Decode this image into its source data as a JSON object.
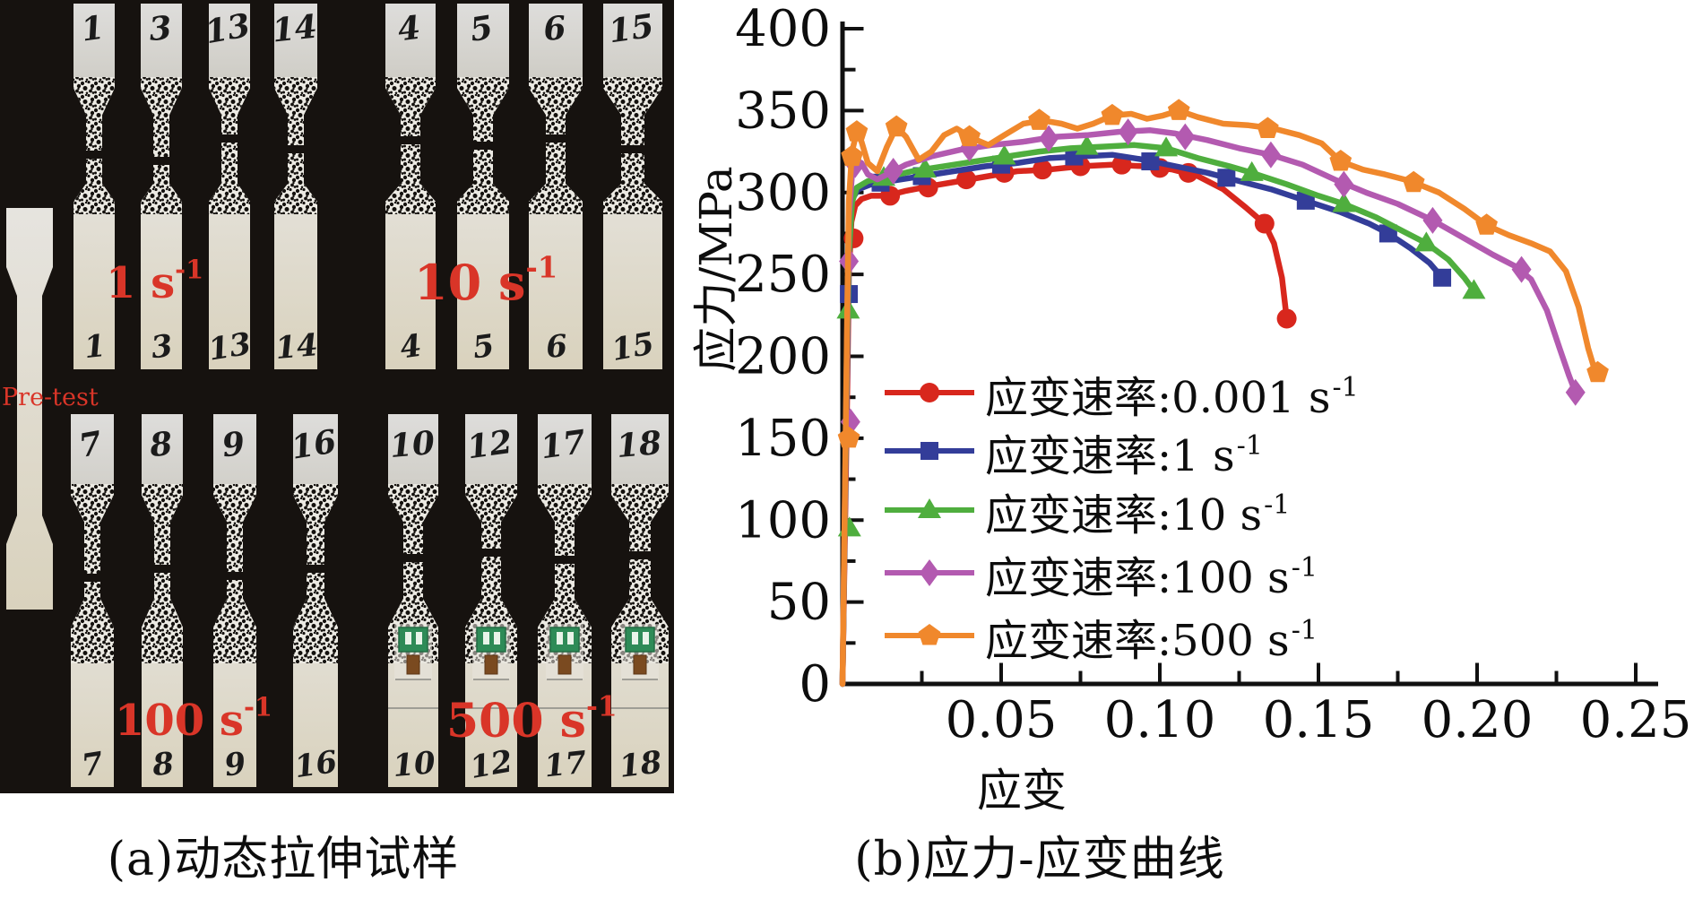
{
  "figure": {
    "panel_a": {
      "caption": "(a)动态拉伸试样",
      "photo": {
        "bg_color": "#16120f",
        "label_color": "#d93528",
        "pretest_label": "Pre-test",
        "groups": [
          {
            "id": "1s",
            "label_base": "1 s",
            "label_sup": "-1",
            "row": "top",
            "specimens": [
              "1",
              "3",
              "13",
              "14"
            ]
          },
          {
            "id": "10s",
            "label_base": "10 s",
            "label_sup": "-1",
            "row": "top",
            "specimens": [
              "4",
              "5",
              "6",
              "15"
            ]
          },
          {
            "id": "100s",
            "label_base": "100 s",
            "label_sup": "-1",
            "row": "bottom",
            "specimens": [
              "7",
              "8",
              "9",
              "16"
            ]
          },
          {
            "id": "500s",
            "label_base": "500 s",
            "label_sup": "-1",
            "row": "bottom",
            "specimens": [
              "10",
              "12",
              "17",
              "18"
            ]
          }
        ]
      }
    },
    "panel_b": {
      "caption": "(b)应力-应变曲线",
      "x_title": "应变",
      "y_title": "应力/MPa"
    }
  },
  "chart_data": {
    "type": "line",
    "title": "",
    "xlabel": "应变",
    "ylabel": "应力/MPa",
    "xlim": [
      0,
      0.25
    ],
    "ylim": [
      0,
      400
    ],
    "grid": false,
    "legend_position": "inside-left-middle",
    "axis_color": "#111111",
    "x_ticks": [
      0.05,
      0.1,
      0.15,
      0.2,
      0.25
    ],
    "x_tick_labels": [
      "0.05",
      "0.10",
      "0.15",
      "0.20",
      "0.25"
    ],
    "x_minor_step": 0.025,
    "y_ticks": [
      0,
      50,
      100,
      150,
      200,
      250,
      300,
      350,
      400
    ],
    "y_tick_labels": [
      "0",
      "50",
      "100",
      "150",
      "200",
      "250",
      "300",
      "350",
      "400"
    ],
    "y_minor_step": 25,
    "series": [
      {
        "name": "应变速率:0.001 s⁻¹",
        "label_base": "应变速率:0.001 s",
        "label_sup": "-1",
        "rate": "0.001",
        "color": "#d8271d",
        "marker": "circle",
        "points": [
          [
            0,
            0
          ],
          [
            0.0015,
            180
          ],
          [
            0.002,
            250
          ],
          [
            0.0028,
            282
          ],
          [
            0.004,
            292
          ],
          [
            0.006,
            296
          ],
          [
            0.009,
            298
          ],
          [
            0.014,
            298
          ],
          [
            0.02,
            301
          ],
          [
            0.028,
            304
          ],
          [
            0.037,
            307
          ],
          [
            0.046,
            310
          ],
          [
            0.055,
            313
          ],
          [
            0.065,
            314
          ],
          [
            0.075,
            316
          ],
          [
            0.085,
            317
          ],
          [
            0.095,
            316
          ],
          [
            0.104,
            314
          ],
          [
            0.112,
            310
          ],
          [
            0.12,
            302
          ],
          [
            0.127,
            291
          ],
          [
            0.133,
            281
          ],
          [
            0.136,
            269
          ],
          [
            0.1385,
            248
          ],
          [
            0.14,
            223
          ]
        ],
        "markers": [
          [
            0.0035,
            272
          ],
          [
            0.015,
            298
          ],
          [
            0.027,
            303
          ],
          [
            0.039,
            308
          ],
          [
            0.051,
            312
          ],
          [
            0.063,
            314
          ],
          [
            0.075,
            316
          ],
          [
            0.088,
            317
          ],
          [
            0.1,
            315
          ],
          [
            0.109,
            312
          ],
          [
            0.133,
            281
          ],
          [
            0.14,
            223
          ]
        ]
      },
      {
        "name": "应变速率:1 s⁻¹",
        "label_base": "应变速率:1 s",
        "label_sup": "-1",
        "rate": "1",
        "color": "#333d99",
        "marker": "square",
        "points": [
          [
            0,
            0
          ],
          [
            0.0015,
            200
          ],
          [
            0.002,
            262
          ],
          [
            0.003,
            296
          ],
          [
            0.005,
            302
          ],
          [
            0.009,
            305
          ],
          [
            0.015,
            307
          ],
          [
            0.025,
            310
          ],
          [
            0.035,
            313
          ],
          [
            0.045,
            316
          ],
          [
            0.055,
            318
          ],
          [
            0.065,
            321
          ],
          [
            0.075,
            322
          ],
          [
            0.085,
            323
          ],
          [
            0.095,
            320
          ],
          [
            0.105,
            316
          ],
          [
            0.115,
            312
          ],
          [
            0.125,
            307
          ],
          [
            0.135,
            302
          ],
          [
            0.146,
            295
          ],
          [
            0.157,
            288
          ],
          [
            0.166,
            281
          ],
          [
            0.172,
            275
          ],
          [
            0.179,
            266
          ],
          [
            0.185,
            257
          ],
          [
            0.189,
            248
          ]
        ],
        "markers": [
          [
            0.002,
            238
          ],
          [
            0.012,
            306
          ],
          [
            0.025,
            310
          ],
          [
            0.05,
            317
          ],
          [
            0.073,
            322
          ],
          [
            0.097,
            319
          ],
          [
            0.121,
            309
          ],
          [
            0.146,
            295
          ],
          [
            0.172,
            275
          ],
          [
            0.189,
            248
          ]
        ]
      },
      {
        "name": "应变速率:10 s⁻¹",
        "label_base": "应变速率:10 s",
        "label_sup": "-1",
        "rate": "10",
        "color": "#4fae3e",
        "marker": "triangle",
        "points": [
          [
            0,
            0
          ],
          [
            0.0015,
            210
          ],
          [
            0.002,
            262
          ],
          [
            0.003,
            294
          ],
          [
            0.0045,
            303
          ],
          [
            0.008,
            307
          ],
          [
            0.013,
            309
          ],
          [
            0.022,
            313
          ],
          [
            0.032,
            316
          ],
          [
            0.042,
            319
          ],
          [
            0.052,
            322
          ],
          [
            0.062,
            325
          ],
          [
            0.072,
            327
          ],
          [
            0.082,
            328
          ],
          [
            0.092,
            329
          ],
          [
            0.102,
            327
          ],
          [
            0.112,
            321
          ],
          [
            0.122,
            316
          ],
          [
            0.129,
            312
          ],
          [
            0.14,
            305
          ],
          [
            0.15,
            298
          ],
          [
            0.158,
            293
          ],
          [
            0.168,
            285
          ],
          [
            0.177,
            276
          ],
          [
            0.184,
            269
          ],
          [
            0.191,
            259
          ],
          [
            0.196,
            248
          ],
          [
            0.199,
            240
          ]
        ],
        "markers": [
          [
            0.0018,
            228
          ],
          [
            0.0022,
            95
          ],
          [
            0.013,
            309
          ],
          [
            0.026,
            314
          ],
          [
            0.051,
            322
          ],
          [
            0.077,
            328
          ],
          [
            0.102,
            327
          ],
          [
            0.129,
            312
          ],
          [
            0.158,
            293
          ],
          [
            0.184,
            269
          ],
          [
            0.199,
            240
          ]
        ]
      },
      {
        "name": "应变速率:100 s⁻¹",
        "label_base": "应变速率:100 s",
        "label_sup": "-1",
        "rate": "100",
        "color": "#b35ab0",
        "marker": "diamond",
        "points": [
          [
            0,
            0
          ],
          [
            0.0015,
            220
          ],
          [
            0.002,
            285
          ],
          [
            0.003,
            311
          ],
          [
            0.004,
            317
          ],
          [
            0.006,
            318
          ],
          [
            0.008,
            311
          ],
          [
            0.011,
            308
          ],
          [
            0.015,
            312
          ],
          [
            0.02,
            317
          ],
          [
            0.028,
            322
          ],
          [
            0.037,
            326
          ],
          [
            0.047,
            329
          ],
          [
            0.057,
            331
          ],
          [
            0.067,
            334
          ],
          [
            0.077,
            335
          ],
          [
            0.087,
            337
          ],
          [
            0.097,
            338
          ],
          [
            0.105,
            336
          ],
          [
            0.115,
            332
          ],
          [
            0.125,
            327
          ],
          [
            0.135,
            323
          ],
          [
            0.145,
            317
          ],
          [
            0.155,
            308
          ],
          [
            0.165,
            300
          ],
          [
            0.175,
            293
          ],
          [
            0.186,
            283
          ],
          [
            0.196,
            272
          ],
          [
            0.205,
            262
          ],
          [
            0.212,
            255
          ],
          [
            0.217,
            247
          ],
          [
            0.222,
            228
          ],
          [
            0.226,
            205
          ],
          [
            0.229,
            188
          ],
          [
            0.231,
            178
          ]
        ],
        "markers": [
          [
            0.002,
            258
          ],
          [
            0.0025,
            160
          ],
          [
            0.004,
            317
          ],
          [
            0.016,
            313
          ],
          [
            0.04,
            327
          ],
          [
            0.065,
            333
          ],
          [
            0.09,
            337
          ],
          [
            0.108,
            334
          ],
          [
            0.135,
            323
          ],
          [
            0.158,
            305
          ],
          [
            0.186,
            283
          ],
          [
            0.214,
            253
          ],
          [
            0.231,
            178
          ]
        ]
      },
      {
        "name": "应变速率:500 s⁻¹",
        "label_base": "应变速率:500 s",
        "label_sup": "-1",
        "rate": "500",
        "color": "#f0882c",
        "marker": "pentagon",
        "points": [
          [
            0,
            0
          ],
          [
            0.0015,
            230
          ],
          [
            0.002,
            295
          ],
          [
            0.003,
            325
          ],
          [
            0.0045,
            337
          ],
          [
            0.006,
            331
          ],
          [
            0.008,
            318
          ],
          [
            0.011,
            313
          ],
          [
            0.014,
            328
          ],
          [
            0.017,
            340
          ],
          [
            0.02,
            334
          ],
          [
            0.024,
            320
          ],
          [
            0.028,
            325
          ],
          [
            0.032,
            335
          ],
          [
            0.036,
            339
          ],
          [
            0.041,
            333
          ],
          [
            0.046,
            329
          ],
          [
            0.051,
            335
          ],
          [
            0.057,
            342
          ],
          [
            0.063,
            344
          ],
          [
            0.069,
            342
          ],
          [
            0.074,
            339
          ],
          [
            0.079,
            342
          ],
          [
            0.085,
            347
          ],
          [
            0.091,
            348
          ],
          [
            0.096,
            345
          ],
          [
            0.101,
            347
          ],
          [
            0.106,
            350
          ],
          [
            0.112,
            346
          ],
          [
            0.12,
            342
          ],
          [
            0.128,
            341
          ],
          [
            0.136,
            339
          ],
          [
            0.144,
            335
          ],
          [
            0.151,
            330
          ],
          [
            0.157,
            319
          ],
          [
            0.164,
            314
          ],
          [
            0.171,
            311
          ],
          [
            0.179,
            307
          ],
          [
            0.188,
            300
          ],
          [
            0.196,
            290
          ],
          [
            0.203,
            280
          ],
          [
            0.21,
            274
          ],
          [
            0.217,
            269
          ],
          [
            0.223,
            264
          ],
          [
            0.228,
            252
          ],
          [
            0.232,
            230
          ],
          [
            0.235,
            205
          ],
          [
            0.237,
            192
          ],
          [
            0.238,
            190
          ]
        ],
        "markers": [
          [
            0.002,
            150
          ],
          [
            0.003,
            322
          ],
          [
            0.0045,
            337
          ],
          [
            0.017,
            340
          ],
          [
            0.04,
            334
          ],
          [
            0.062,
            344
          ],
          [
            0.085,
            347
          ],
          [
            0.106,
            350
          ],
          [
            0.134,
            339
          ],
          [
            0.157,
            319
          ],
          [
            0.18,
            306
          ],
          [
            0.203,
            280
          ],
          [
            0.238,
            190
          ]
        ]
      }
    ]
  }
}
